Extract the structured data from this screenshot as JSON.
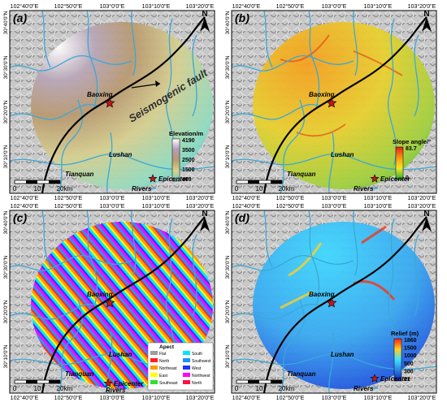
{
  "panels": [
    {
      "id": "a",
      "label": "(a)",
      "top_ticks": [
        "102°40'0\"E",
        "102°50'0\"E",
        "103°0'0\"E",
        "103°10'0\"E",
        "103°20'0\"E"
      ],
      "bottom_ticks": [
        "102°40'0\"E",
        "102°50'0\"E",
        "103°0'0\"E",
        "103°10'0\"E",
        "103°20'0\"E"
      ],
      "left_ticks": [
        "30°40'0\"N",
        "30°30'0\"N",
        "30°20'0\"N",
        "30°10'0\"N"
      ],
      "places": [
        "Baoxing",
        "Lushan",
        "Tianquan"
      ],
      "fault_label": "Seismogenic fault",
      "north": "N",
      "scale": [
        "0",
        "10",
        "20",
        "km"
      ],
      "legend_title": "Elevation/m",
      "legend_values": [
        "4190",
        "3500",
        "2500",
        "1500",
        "469"
      ],
      "epicenter_label": "Epicenter",
      "rivers_label": "Rivers"
    },
    {
      "id": "b",
      "label": "(b)",
      "top_ticks": [
        "102°40'0\"E",
        "102°50'0\"E",
        "103°0'0\"E",
        "103°10'0\"E",
        "103°20'0\"E"
      ],
      "bottom_ticks": [
        "102°40'0\"E",
        "102°50'0\"E",
        "103°0'0\"E",
        "103°10'0\"E",
        "103°20'0\"E"
      ],
      "left_ticks": [
        "30°40'0\"N",
        "30°30'0\"N",
        "30°20'0\"N",
        "30°10'0\"N"
      ],
      "places": [
        "Baoxing",
        "Lushan",
        "Tianquan"
      ],
      "north": "N",
      "scale": [
        "0",
        "10",
        "20",
        "km"
      ],
      "legend_title": "Slope angle/°",
      "legend_values": [
        "83.7",
        "0"
      ],
      "epicenter_label": "Epicenter",
      "rivers_label": "Rivers"
    },
    {
      "id": "c",
      "label": "(c)",
      "top_ticks": [
        "102°40'0\"E",
        "102°50'0\"E",
        "103°0'0\"E",
        "103°10'0\"E",
        "103°20'0\"E"
      ],
      "bottom_ticks": [
        "102°40'0\"E",
        "102°50'0\"E",
        "103°0'0\"E",
        "103°10'0\"E",
        "103°20'0\"E"
      ],
      "left_ticks": [
        "30°40'0\"N",
        "30°30'0\"N",
        "30°20'0\"N",
        "30°10'0\"N"
      ],
      "places": [
        "Baoxing",
        "Lushan",
        "Tianquan"
      ],
      "north": "N",
      "scale": [
        "0",
        "10",
        "20",
        "km"
      ],
      "legend_title": "Apect",
      "aspect_classes": [
        {
          "name": "Flat",
          "color": "#9e9e9e"
        },
        {
          "name": "South",
          "color": "#00e5ff"
        },
        {
          "name": "North",
          "color": "#ff2020"
        },
        {
          "name": "Southwest",
          "color": "#1e90ff"
        },
        {
          "name": "Northeast",
          "color": "#ff9900"
        },
        {
          "name": "West",
          "color": "#2030ff"
        },
        {
          "name": "East",
          "color": "#ffff00"
        },
        {
          "name": "Northwest",
          "color": "#ff00ff"
        },
        {
          "name": "Southeast",
          "color": "#30e030"
        },
        {
          "name": "North",
          "color": "#ff1040"
        }
      ],
      "epicenter_label": "Epicenter",
      "rivers_label": "Rivers"
    },
    {
      "id": "d",
      "label": "(d)",
      "top_ticks": [
        "102°40'0\"E",
        "102°50'0\"E",
        "103°0'0\"E",
        "103°10'0\"E",
        "103°20'0\"E"
      ],
      "bottom_ticks": [
        "102°40'0\"E",
        "102°50'0\"E",
        "103°0'0\"E",
        "103°10'0\"E",
        "103°20'0\"E"
      ],
      "left_ticks": [
        "30°40'0\"N",
        "30°30'0\"N",
        "30°20'0\"N",
        "30°10'0\"N"
      ],
      "places": [
        "Baoxing",
        "Lushan",
        "Tianquan"
      ],
      "north": "N",
      "scale": [
        "0",
        "10",
        "20",
        "km"
      ],
      "legend_title": "Relief (m)",
      "legend_values": [
        "1860",
        "1500",
        "1000",
        "500",
        "300",
        "21"
      ],
      "epicenter_label": "Epicenter",
      "rivers_label": "Rivers"
    }
  ],
  "colors": {
    "river": "#3aa8d8",
    "fault": "#000000",
    "epicenter": "#c0181c",
    "hillshade": "#bdbdbd"
  }
}
